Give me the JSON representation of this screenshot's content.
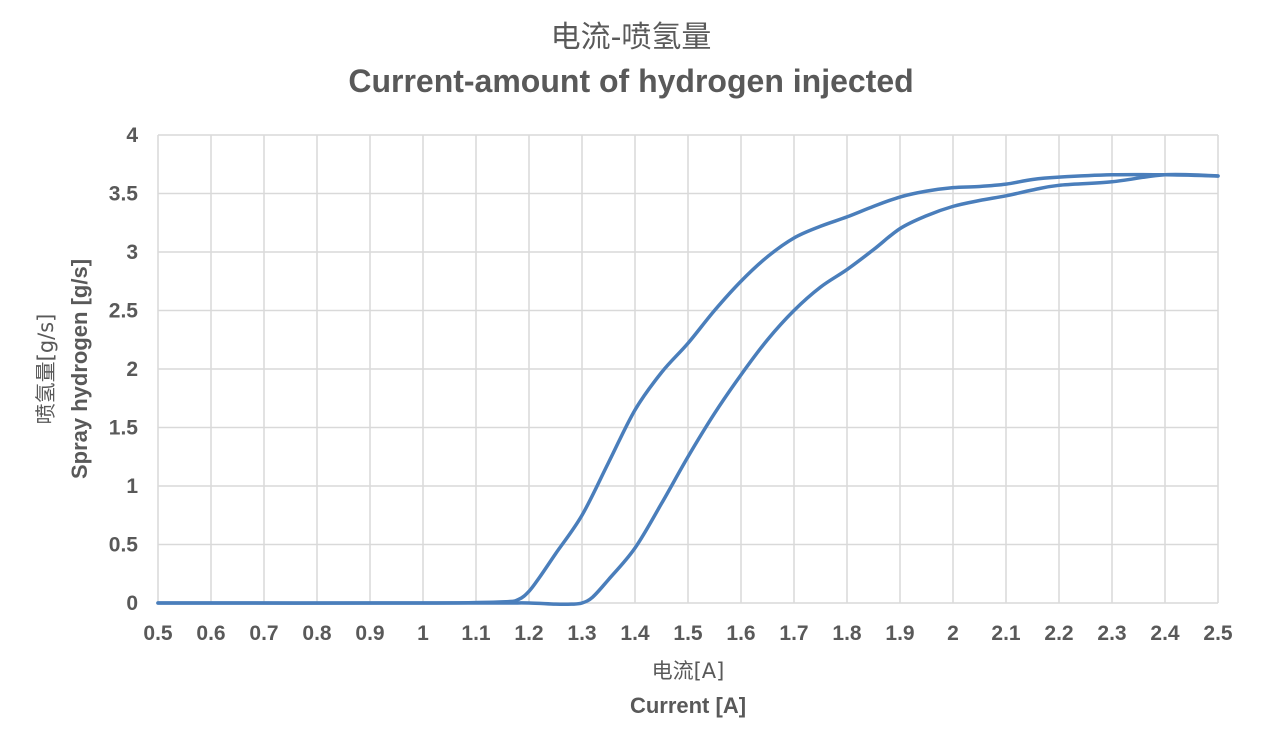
{
  "chart_data": {
    "type": "line",
    "title": "电流-喷氢量",
    "subtitle": "Current-amount of hydrogen injected",
    "xlabel_cn": "电流[A]",
    "xlabel_en": "Current [A]",
    "ylabel_cn": "喷氢量[g/s]",
    "ylabel_en": "Spray hydrogen [g/s]",
    "xlim": [
      0.5,
      2.5
    ],
    "ylim": [
      0,
      4
    ],
    "xticks": [
      0.5,
      0.6,
      0.7,
      0.8,
      0.9,
      1,
      1.1,
      1.2,
      1.3,
      1.4,
      1.5,
      1.6,
      1.7,
      1.8,
      1.9,
      2,
      2.1,
      2.2,
      2.3,
      2.4,
      2.5
    ],
    "xtick_labels": [
      "0.5",
      "0.6",
      "0.7",
      "0.8",
      "0.9",
      "1",
      "1.1",
      "1.2",
      "1.3",
      "1.4",
      "1.5",
      "1.6",
      "1.7",
      "1.8",
      "1.9",
      "2",
      "2.1",
      "2.2",
      "2.3",
      "2.4",
      "2.5"
    ],
    "yticks": [
      0,
      0.5,
      1,
      1.5,
      2,
      2.5,
      3,
      3.5,
      4
    ],
    "ytick_labels": [
      "0",
      "0.5",
      "1",
      "1.5",
      "2",
      "2.5",
      "3",
      "3.5",
      "4"
    ],
    "grid": true,
    "color": "#4a7ebb",
    "series": [
      {
        "x": [
          0.5,
          1.0,
          1.15,
          1.18,
          1.2,
          1.22,
          1.25,
          1.3,
          1.35,
          1.4,
          1.45,
          1.5,
          1.55,
          1.6,
          1.65,
          1.7,
          1.75,
          1.8,
          1.85,
          1.9,
          1.95,
          2.0,
          2.05,
          2.1,
          2.15,
          2.2,
          2.3,
          2.4,
          2.5
        ],
        "y": [
          0.0,
          0.0,
          0.01,
          0.03,
          0.1,
          0.22,
          0.42,
          0.75,
          1.2,
          1.65,
          1.97,
          2.22,
          2.5,
          2.75,
          2.96,
          3.12,
          3.22,
          3.3,
          3.39,
          3.47,
          3.52,
          3.55,
          3.56,
          3.58,
          3.62,
          3.64,
          3.66,
          3.66,
          3.65
        ]
      },
      {
        "x": [
          0.5,
          1.0,
          1.15,
          1.2,
          1.25,
          1.28,
          1.3,
          1.32,
          1.35,
          1.4,
          1.45,
          1.5,
          1.55,
          1.6,
          1.65,
          1.7,
          1.75,
          1.8,
          1.85,
          1.9,
          1.95,
          2.0,
          2.05,
          2.1,
          2.15,
          2.2,
          2.3,
          2.4,
          2.5
        ],
        "y": [
          0.0,
          0.0,
          0.0,
          0.0,
          -0.01,
          -0.01,
          0.0,
          0.05,
          0.2,
          0.47,
          0.85,
          1.25,
          1.62,
          1.95,
          2.25,
          2.5,
          2.7,
          2.85,
          3.02,
          3.2,
          3.31,
          3.39,
          3.44,
          3.48,
          3.53,
          3.57,
          3.6,
          3.66,
          3.65
        ]
      }
    ]
  }
}
